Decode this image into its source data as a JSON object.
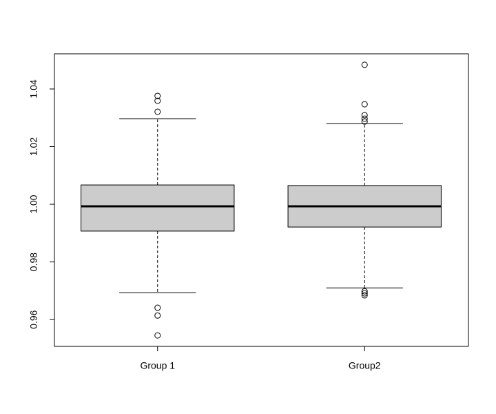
{
  "chart_data": {
    "type": "boxplot",
    "categories": [
      "Group 1",
      "Group2"
    ],
    "color": "#cccccc",
    "boxes": [
      {
        "whisker_low": 0.9693,
        "q1": 0.9907,
        "median": 0.9993,
        "q3": 1.0067,
        "whisker_high": 1.0297,
        "outliers": [
          1.0376,
          1.0359,
          1.0321,
          0.9641,
          0.9614,
          0.9545
        ]
      },
      {
        "whisker_low": 0.971,
        "q1": 0.9921,
        "median": 0.9993,
        "q3": 1.0065,
        "whisker_high": 1.028,
        "outliers": [
          1.0484,
          1.0347,
          1.0309,
          1.0297,
          1.0287,
          0.9698,
          0.9691,
          0.9684
        ]
      }
    ],
    "ylim": [
      0.9507,
      1.0522
    ],
    "yticks": [
      0.96,
      0.98,
      {
        "value": 1,
        "label": "1.00"
      },
      1.02,
      1.04
    ]
  }
}
